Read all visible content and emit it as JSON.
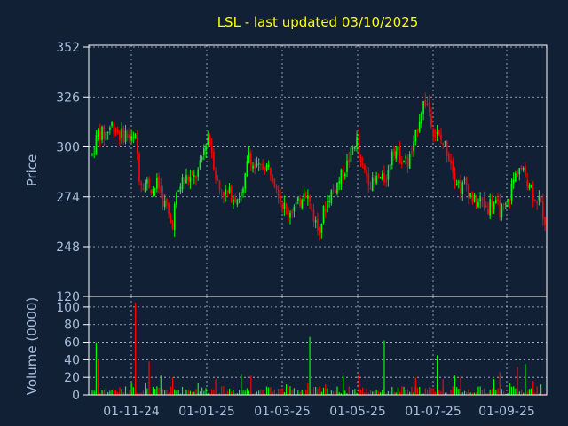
{
  "chart_data": {
    "type": "candlestick",
    "title": "LSL - last updated 03/10/2025",
    "colors": {
      "background": "#112035",
      "up": "#00ff00",
      "down": "#ff0000",
      "title": "#ffff00",
      "ticks": "#a9bfdc",
      "frame": "#ffffff"
    },
    "grid": true,
    "x_ticks": [
      "01-11-24",
      "01-01-25",
      "01-03-25",
      "01-05-25",
      "01-07-25",
      "01-09-25"
    ],
    "price_panel": {
      "ylabel": "Price",
      "yticks": [
        120,
        248,
        274,
        300,
        326,
        352
      ],
      "ylim_top": 352,
      "grid_range": [
        248,
        352
      ]
    },
    "volume_panel": {
      "ylabel": "Volume (0000)",
      "yticks": [
        0,
        20,
        40,
        60,
        80,
        100
      ],
      "ylim": [
        0,
        110
      ]
    },
    "price_path": [
      [
        0,
        296
      ],
      [
        6,
        308
      ],
      [
        12,
        306
      ],
      [
        20,
        312
      ],
      [
        28,
        306
      ],
      [
        34,
        307
      ],
      [
        40,
        303
      ],
      [
        44,
        304
      ],
      [
        48,
        282
      ],
      [
        56,
        281
      ],
      [
        62,
        278
      ],
      [
        66,
        281
      ],
      [
        70,
        274
      ],
      [
        76,
        266
      ],
      [
        80,
        258
      ],
      [
        84,
        272
      ],
      [
        90,
        282
      ],
      [
        96,
        284
      ],
      [
        102,
        283
      ],
      [
        108,
        288
      ],
      [
        112,
        298
      ],
      [
        116,
        306
      ],
      [
        120,
        300
      ],
      [
        124,
        286
      ],
      [
        128,
        278
      ],
      [
        134,
        276
      ],
      [
        140,
        275
      ],
      [
        146,
        274
      ],
      [
        152,
        276
      ],
      [
        158,
        298
      ],
      [
        162,
        290
      ],
      [
        168,
        288
      ],
      [
        174,
        290
      ],
      [
        180,
        288
      ],
      [
        186,
        280
      ],
      [
        190,
        272
      ],
      [
        196,
        266
      ],
      [
        202,
        268
      ],
      [
        208,
        270
      ],
      [
        214,
        280
      ],
      [
        218,
        272
      ],
      [
        224,
        262
      ],
      [
        228,
        256
      ],
      [
        234,
        268
      ],
      [
        240,
        276
      ],
      [
        246,
        280
      ],
      [
        252,
        286
      ],
      [
        256,
        290
      ],
      [
        262,
        298
      ],
      [
        266,
        305
      ],
      [
        270,
        290
      ],
      [
        276,
        286
      ],
      [
        282,
        280
      ],
      [
        288,
        284
      ],
      [
        292,
        282
      ],
      [
        298,
        286
      ],
      [
        302,
        300
      ],
      [
        306,
        298
      ],
      [
        312,
        294
      ],
      [
        318,
        292
      ],
      [
        324,
        300
      ],
      [
        328,
        312
      ],
      [
        332,
        321
      ],
      [
        336,
        324
      ],
      [
        340,
        318
      ],
      [
        344,
        308
      ],
      [
        350,
        304
      ],
      [
        356,
        300
      ],
      [
        362,
        292
      ],
      [
        366,
        284
      ],
      [
        372,
        278
      ],
      [
        376,
        282
      ],
      [
        380,
        276
      ],
      [
        386,
        270
      ],
      [
        392,
        272
      ],
      [
        398,
        268
      ],
      [
        402,
        272
      ],
      [
        408,
        268
      ],
      [
        414,
        266
      ],
      [
        418,
        270
      ],
      [
        424,
        282
      ],
      [
        430,
        290
      ],
      [
        434,
        286
      ],
      [
        440,
        282
      ],
      [
        444,
        276
      ],
      [
        450,
        272
      ],
      [
        456,
        262
      ]
    ],
    "volume_spikes": [
      [
        4,
        60
      ],
      [
        6,
        40
      ],
      [
        40,
        14
      ],
      [
        44,
        105
      ],
      [
        54,
        14
      ],
      [
        58,
        38
      ],
      [
        70,
        22
      ],
      [
        80,
        20
      ],
      [
        106,
        14
      ],
      [
        124,
        18
      ],
      [
        150,
        24
      ],
      [
        160,
        22
      ],
      [
        196,
        12
      ],
      [
        218,
        14
      ],
      [
        220,
        66
      ],
      [
        234,
        12
      ],
      [
        252,
        22
      ],
      [
        268,
        24
      ],
      [
        294,
        62
      ],
      [
        326,
        20
      ],
      [
        348,
        45
      ],
      [
        354,
        18
      ],
      [
        366,
        22
      ],
      [
        372,
        20
      ],
      [
        404,
        18
      ],
      [
        410,
        26
      ],
      [
        420,
        14
      ],
      [
        428,
        32
      ],
      [
        436,
        35
      ],
      [
        444,
        16
      ],
      [
        452,
        12
      ]
    ],
    "candle_count": 232,
    "seed": 7
  }
}
